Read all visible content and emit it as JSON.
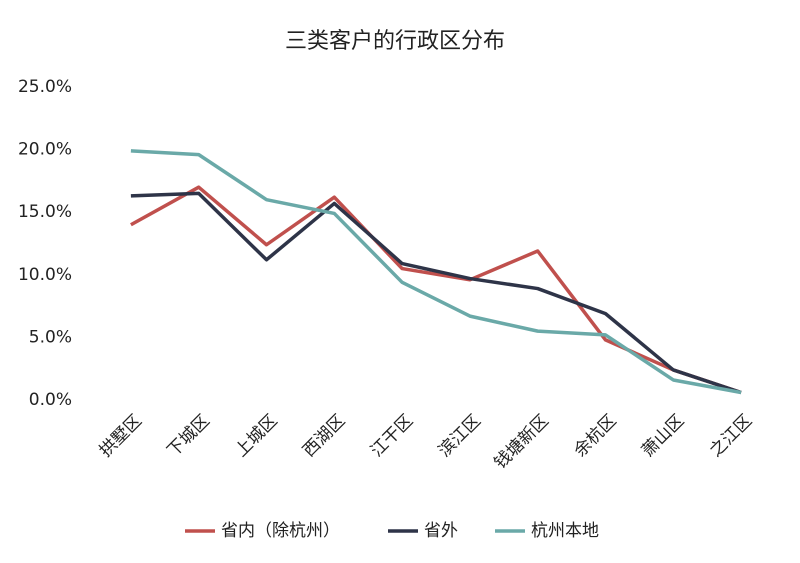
{
  "chart_data": {
    "type": "line",
    "title": "三类客户的行政区分布",
    "categories": [
      "拱墅区",
      "下城区",
      "上城区",
      "西湖区",
      "江干区",
      "滨江区",
      "钱塘新区",
      "余杭区",
      "萧山区",
      "之江区"
    ],
    "series": [
      {
        "name": "省内（除杭州）",
        "color": "#c0504d",
        "values": [
          14.0,
          17.0,
          12.4,
          16.2,
          10.5,
          9.6,
          11.9,
          4.8,
          2.4,
          0.6
        ]
      },
      {
        "name": "省外",
        "color": "#2e3448",
        "values": [
          16.3,
          16.5,
          11.2,
          15.7,
          10.9,
          9.7,
          8.9,
          6.9,
          2.4,
          0.6
        ]
      },
      {
        "name": "杭州本地",
        "color": "#6aa9a8",
        "values": [
          19.9,
          19.6,
          16.0,
          14.9,
          9.4,
          6.7,
          5.5,
          5.2,
          1.6,
          0.6
        ]
      }
    ],
    "ylim": [
      0,
      25
    ],
    "yticks": [
      {
        "value": 0,
        "label": "0.0%"
      },
      {
        "value": 5,
        "label": "5.0%"
      },
      {
        "value": 10,
        "label": "10.0%"
      },
      {
        "value": 15,
        "label": "15.0%"
      },
      {
        "value": 20,
        "label": "20.0%"
      },
      {
        "value": 25,
        "label": "25.0%"
      }
    ],
    "grid": false,
    "legend": "bottom"
  }
}
